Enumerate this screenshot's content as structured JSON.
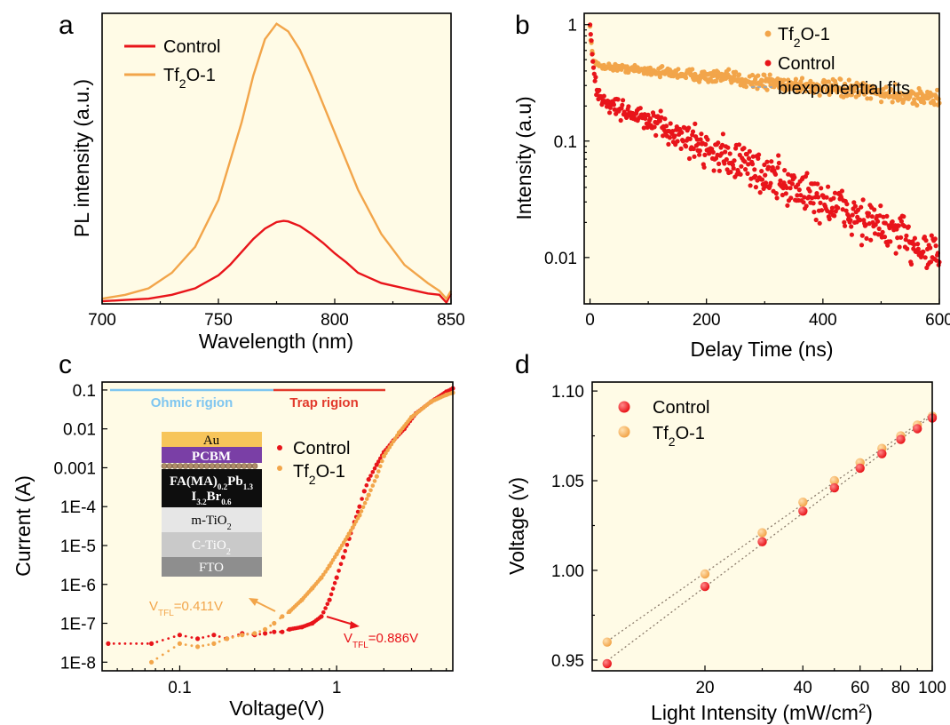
{
  "colors": {
    "control": "#e8141a",
    "tf2o": "#f2a54a",
    "plot_bg": "#fffbe6",
    "ohmic": "#7fc6f0",
    "trap": "#e23a2c"
  },
  "chart_data": [
    {
      "panel": "a",
      "type": "line",
      "xlabel": "Wavelength (nm)",
      "ylabel": "PL intensity (a.u.)",
      "xlim": [
        700,
        850
      ],
      "ylim": [
        0,
        1.12
      ],
      "xticks": [
        "700",
        "750",
        "800",
        "850"
      ],
      "legend": {
        "position": "top-left"
      },
      "series": [
        {
          "name": "Control",
          "x": [
            700,
            710,
            720,
            730,
            740,
            750,
            755,
            760,
            765,
            770,
            775,
            778,
            780,
            785,
            790,
            795,
            800,
            805,
            810,
            815,
            820,
            825,
            830,
            835,
            840,
            845,
            848,
            850
          ],
          "y": [
            0.01,
            0.015,
            0.02,
            0.035,
            0.06,
            0.11,
            0.15,
            0.2,
            0.25,
            0.29,
            0.315,
            0.32,
            0.318,
            0.3,
            0.27,
            0.235,
            0.195,
            0.16,
            0.12,
            0.1,
            0.08,
            0.07,
            0.06,
            0.05,
            0.04,
            0.035,
            0.005,
            0.04
          ]
        },
        {
          "name": "Tf₂O-1",
          "x": [
            700,
            710,
            720,
            730,
            740,
            750,
            760,
            765,
            770,
            775,
            780,
            785,
            790,
            800,
            810,
            820,
            830,
            840,
            845,
            848,
            850
          ],
          "y": [
            0.02,
            0.035,
            0.06,
            0.12,
            0.22,
            0.4,
            0.7,
            0.88,
            1.02,
            1.08,
            1.05,
            0.98,
            0.88,
            0.66,
            0.44,
            0.27,
            0.15,
            0.08,
            0.05,
            0.02,
            0.05
          ]
        }
      ]
    },
    {
      "panel": "b",
      "type": "scatter",
      "xlabel": "Delay Time (ns)",
      "ylabel": "Intensity (a.u)",
      "xlim": [
        -10,
        600
      ],
      "ylim": [
        0.004,
        1.25
      ],
      "yscale": "log",
      "xticks": [
        "0",
        "200",
        "400",
        "600"
      ],
      "yticks": [
        "1",
        "0.1",
        "0.01"
      ],
      "legend": {
        "position": "top-right"
      },
      "series": [
        {
          "name": "Tf₂O-1",
          "model": {
            "a1": 0.5,
            "tau1": 3,
            "a2": 0.45,
            "tau2": 900
          },
          "noise": 0.08,
          "n": 500
        },
        {
          "name": "Control",
          "model": {
            "a1": 0.75,
            "tau1": 4,
            "a2": 0.25,
            "tau2": 190
          },
          "noise": 0.22,
          "n": 500
        },
        {
          "name": "biexponential fits"
        }
      ]
    },
    {
      "panel": "c",
      "type": "scatter",
      "xlabel": "Voltage(V)",
      "ylabel": "Current (A)",
      "xlim": [
        0.032,
        5.5
      ],
      "ylim": [
        6e-09,
        0.16
      ],
      "xscale": "log",
      "yscale": "log",
      "xticks": [
        "0.1",
        "1"
      ],
      "yticks": [
        "0.1",
        "0.01",
        "0.001",
        "1E-4",
        "1E-5",
        "1E-6",
        "1E-7",
        "1E-8"
      ],
      "legend": {
        "position": "middle"
      },
      "series": [
        {
          "name": "Control",
          "x": [
            0.035,
            0.066,
            0.1,
            0.13,
            0.165,
            0.2,
            0.25,
            0.3,
            0.35,
            0.4,
            0.45,
            0.5,
            0.6,
            0.7,
            0.8,
            0.9,
            1.0,
            1.1,
            1.2,
            1.3,
            1.4,
            1.5,
            1.6,
            1.8,
            2.0,
            2.3,
            2.7,
            3.2,
            4.0,
            5.0,
            5.5
          ],
          "y": [
            3e-08,
            3e-08,
            5e-08,
            4e-08,
            5e-08,
            4e-08,
            5.5e-08,
            5e-08,
            5.5e-08,
            6e-08,
            6e-08,
            7e-08,
            8e-08,
            1e-07,
            1.5e-07,
            4e-07,
            1.5e-06,
            5e-06,
            1.5e-05,
            4e-05,
            0.0001,
            0.00025,
            0.0005,
            0.0012,
            0.0025,
            0.005,
            0.01,
            0.025,
            0.05,
            0.09,
            0.11
          ]
        },
        {
          "name": "Tf₂O-1",
          "x": [
            0.066,
            0.1,
            0.13,
            0.165,
            0.2,
            0.25,
            0.3,
            0.35,
            0.4,
            0.45,
            0.5,
            0.6,
            0.7,
            0.8,
            0.9,
            1.0,
            1.2,
            1.4,
            1.6,
            1.8,
            2.0,
            2.5,
            3.0,
            4.0,
            5.0,
            5.5
          ],
          "y": [
            1e-08,
            3e-08,
            2.5e-08,
            3e-08,
            4e-08,
            5e-08,
            5.5e-08,
            7e-08,
            1e-07,
            1.5e-07,
            2e-07,
            4e-07,
            8e-07,
            1.5e-06,
            3e-06,
            6e-06,
            2e-05,
            6e-05,
            0.0002,
            0.0006,
            0.002,
            0.008,
            0.02,
            0.05,
            0.075,
            0.085
          ]
        }
      ]
    },
    {
      "panel": "d",
      "type": "scatter",
      "xlabel": "Light Intensity (mW/cm²)",
      "ylabel": "Voltage (v)",
      "xlim": [
        9,
        100
      ],
      "ylim": [
        0.944,
        1.105
      ],
      "xscale": "log",
      "xticks": [
        "20",
        "40",
        "60",
        "80",
        "100"
      ],
      "yticks": [
        "0.95",
        "1.00",
        "1.05",
        "1.10"
      ],
      "legend": {
        "position": "top-left"
      },
      "series": [
        {
          "name": "Control",
          "x": [
            10,
            20,
            30,
            40,
            50,
            60,
            70,
            80,
            90,
            100
          ],
          "y": [
            0.948,
            0.991,
            1.016,
            1.033,
            1.046,
            1.057,
            1.065,
            1.073,
            1.079,
            1.085
          ]
        },
        {
          "name": "Tf₂O-1",
          "x": [
            10,
            20,
            30,
            40,
            50,
            60,
            70,
            80,
            90,
            100
          ],
          "y": [
            0.96,
            0.998,
            1.021,
            1.038,
            1.05,
            1.06,
            1.068,
            1.075,
            1.081,
            1.086
          ]
        }
      ]
    }
  ],
  "labels": {
    "a": "a",
    "b": "b",
    "c": "c",
    "d": "d"
  },
  "panel_c": {
    "ohmic_label": "Ohmic rigion",
    "trap_label": "Trap rigion",
    "vtfl_tf2o": "V",
    "vtfl_tf2o_sub": "TFL",
    "vtfl_tf2o_val": "=0.411V",
    "vtfl_control": "V",
    "vtfl_control_sub": "TFL",
    "vtfl_control_val": "=0.886V",
    "layers": [
      "Au",
      "PCBM",
      "FA(MA)0.2Pb1.3 I3.2Br0.6",
      "m-TiO2",
      "C-TiO2",
      "FTO"
    ]
  }
}
